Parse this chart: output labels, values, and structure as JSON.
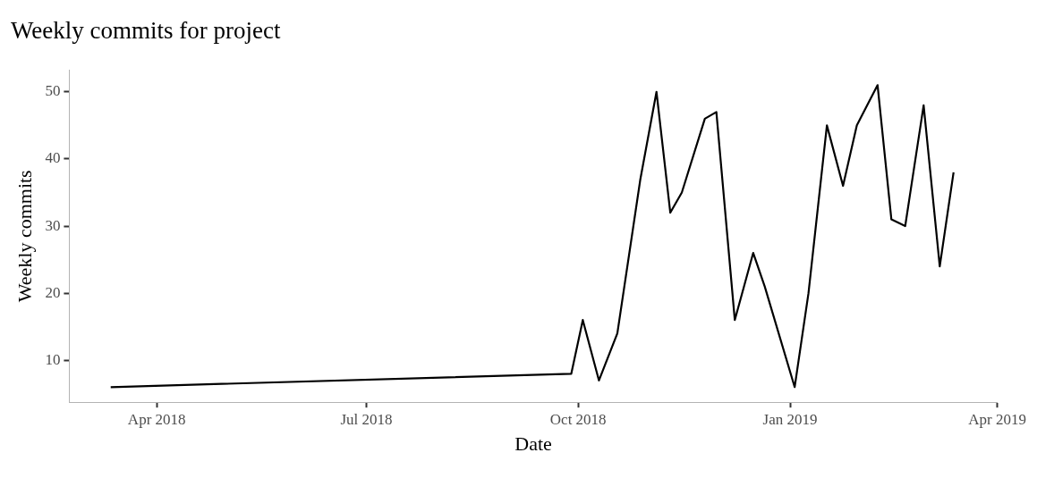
{
  "chart_data": {
    "type": "line",
    "title": "Weekly commits for project",
    "xlabel": "Date",
    "ylabel": "Weekly commits",
    "x": [
      "2018-03-12",
      "2018-09-28",
      "2018-10-03",
      "2018-10-10",
      "2018-10-18",
      "2018-10-28",
      "2018-11-04",
      "2018-11-10",
      "2018-11-15",
      "2018-11-25",
      "2018-11-30",
      "2018-12-08",
      "2018-12-16",
      "2018-12-21",
      "2019-01-03",
      "2019-01-09",
      "2019-01-17",
      "2019-01-24",
      "2019-01-30",
      "2019-02-08",
      "2019-02-14",
      "2019-02-20",
      "2019-02-28",
      "2019-03-07",
      "2019-03-13"
    ],
    "series": [
      {
        "color": "#000000",
        "values": [
          6,
          8,
          16,
          7,
          14,
          37,
          50,
          32,
          35,
          46,
          47,
          16,
          26,
          21,
          6,
          20,
          45,
          36,
          45,
          51,
          31,
          30,
          48,
          24,
          38
        ]
      }
    ],
    "xticks": [
      {
        "value": "2018-04-01",
        "label": "Apr 2018"
      },
      {
        "value": "2018-07-01",
        "label": "Jul 2018"
      },
      {
        "value": "2018-10-01",
        "label": "Oct 2018"
      },
      {
        "value": "2019-01-01",
        "label": "Jan 2019"
      },
      {
        "value": "2019-04-01",
        "label": "Apr 2019"
      }
    ],
    "xlim": [
      "2018-02-22",
      "2019-04-01"
    ],
    "ylim": [
      3.75,
      53.25
    ],
    "yticks": [
      10,
      20,
      30,
      40,
      50
    ],
    "grid": false,
    "legend": false,
    "marker": "none",
    "line_style": "solid"
  }
}
